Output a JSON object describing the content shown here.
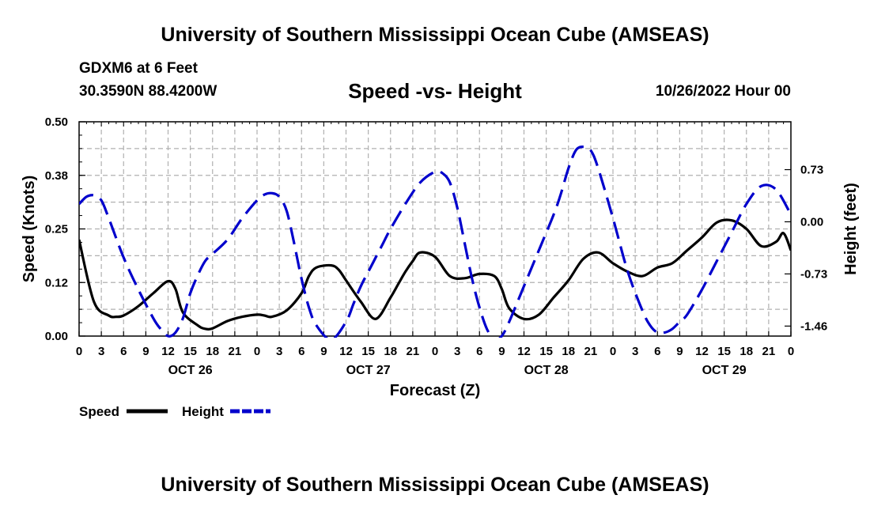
{
  "header": {
    "title": "University of Southern Mississippi Ocean Cube (AMSEAS)",
    "station": "GDXM6 at 6 Feet",
    "coords": "30.3590N  88.4200W",
    "subtitle": "Speed -vs- Height",
    "datetime": "10/26/2022 Hour 00"
  },
  "footer": {
    "title": "University of Southern Mississippi Ocean Cube (AMSEAS)"
  },
  "chart_data": {
    "type": "line",
    "xlabel": "Forecast (Z)",
    "ylabel_left": "Speed (Knots)",
    "ylabel_right": "Height (feet)",
    "x_range_hours": [
      0,
      96
    ],
    "x_tick_labels": [
      "0",
      "3",
      "6",
      "9",
      "12",
      "15",
      "18",
      "21",
      "0",
      "3",
      "6",
      "9",
      "12",
      "15",
      "18",
      "21",
      "0",
      "3",
      "6",
      "9",
      "12",
      "15",
      "18",
      "21",
      "0",
      "3",
      "6",
      "9",
      "12",
      "15",
      "18",
      "21",
      "0"
    ],
    "day_labels": [
      "OCT 26",
      "OCT 27",
      "OCT 28",
      "OCT 29"
    ],
    "y_left_range": [
      0,
      0.5
    ],
    "y_left_ticks": [
      "0.00",
      "0.12",
      "0.25",
      "0.38",
      "0.50"
    ],
    "y_right_range": [
      -1.6,
      1.4
    ],
    "y_right_ticks": [
      "-1.46",
      "-0.73",
      "0.00",
      "0.73"
    ],
    "grid": true,
    "legend": [
      "Speed",
      "Height"
    ],
    "series": [
      {
        "name": "Speed",
        "axis": "left",
        "color": "#000000",
        "style": "solid",
        "x": [
          0,
          2,
          4,
          5,
          6,
          8,
          10,
          12,
          13,
          14,
          16,
          17,
          18,
          20,
          22,
          24,
          25,
          26,
          28,
          30,
          31,
          32,
          34,
          35,
          36,
          38,
          40,
          42,
          43,
          44,
          45,
          46,
          48,
          50,
          52,
          54,
          56,
          57,
          58,
          60,
          62,
          64,
          66,
          68,
          70,
          72,
          74,
          76,
          78,
          80,
          82,
          84,
          86,
          88,
          90,
          92,
          94,
          95,
          96
        ],
        "values": [
          0.225,
          0.08,
          0.048,
          0.045,
          0.048,
          0.07,
          0.1,
          0.128,
          0.11,
          0.055,
          0.025,
          0.017,
          0.018,
          0.035,
          0.045,
          0.05,
          0.048,
          0.045,
          0.06,
          0.1,
          0.14,
          0.16,
          0.165,
          0.155,
          0.13,
          0.08,
          0.04,
          0.09,
          0.12,
          0.15,
          0.175,
          0.195,
          0.185,
          0.14,
          0.135,
          0.145,
          0.14,
          0.11,
          0.065,
          0.04,
          0.05,
          0.09,
          0.13,
          0.18,
          0.195,
          0.17,
          0.15,
          0.14,
          0.16,
          0.17,
          0.2,
          0.23,
          0.265,
          0.27,
          0.25,
          0.21,
          0.22,
          0.24,
          0.2
        ]
      },
      {
        "name": "Height",
        "axis": "right",
        "color": "#0000cc",
        "style": "dashed",
        "x": [
          0,
          1,
          2,
          3,
          4,
          6,
          8,
          10,
          11,
          12,
          13,
          14,
          15,
          16,
          17,
          18,
          20,
          22,
          24,
          25,
          26,
          27,
          28,
          29,
          30,
          31,
          32,
          34,
          36,
          37,
          38,
          39,
          40,
          41,
          42,
          44,
          46,
          48,
          49,
          50,
          51,
          52,
          53,
          54,
          55,
          56,
          57,
          58,
          60,
          62,
          64,
          65,
          66,
          67,
          68,
          69,
          70,
          72,
          74,
          76,
          77,
          78,
          79,
          80,
          81,
          82,
          84,
          86,
          88,
          90,
          92,
          94,
          96
        ],
        "values": [
          0.25,
          0.35,
          0.37,
          0.3,
          0.05,
          -0.5,
          -0.95,
          -1.35,
          -1.5,
          -1.6,
          -1.55,
          -1.35,
          -1.0,
          -0.75,
          -0.55,
          -0.45,
          -0.25,
          0.05,
          0.3,
          0.38,
          0.4,
          0.35,
          0.15,
          -0.3,
          -0.8,
          -1.2,
          -1.45,
          -1.65,
          -1.4,
          -1.15,
          -0.9,
          -0.7,
          -0.5,
          -0.3,
          -0.1,
          0.25,
          0.55,
          0.7,
          0.68,
          0.55,
          0.2,
          -0.3,
          -0.8,
          -1.2,
          -1.5,
          -1.65,
          -1.6,
          -1.4,
          -0.9,
          -0.4,
          0.1,
          0.4,
          0.75,
          1.0,
          1.05,
          1.0,
          0.75,
          0.05,
          -0.7,
          -1.25,
          -1.45,
          -1.55,
          -1.55,
          -1.5,
          -1.4,
          -1.3,
          -0.95,
          -0.55,
          -0.15,
          0.25,
          0.5,
          0.45,
          0.1
        ]
      }
    ]
  }
}
